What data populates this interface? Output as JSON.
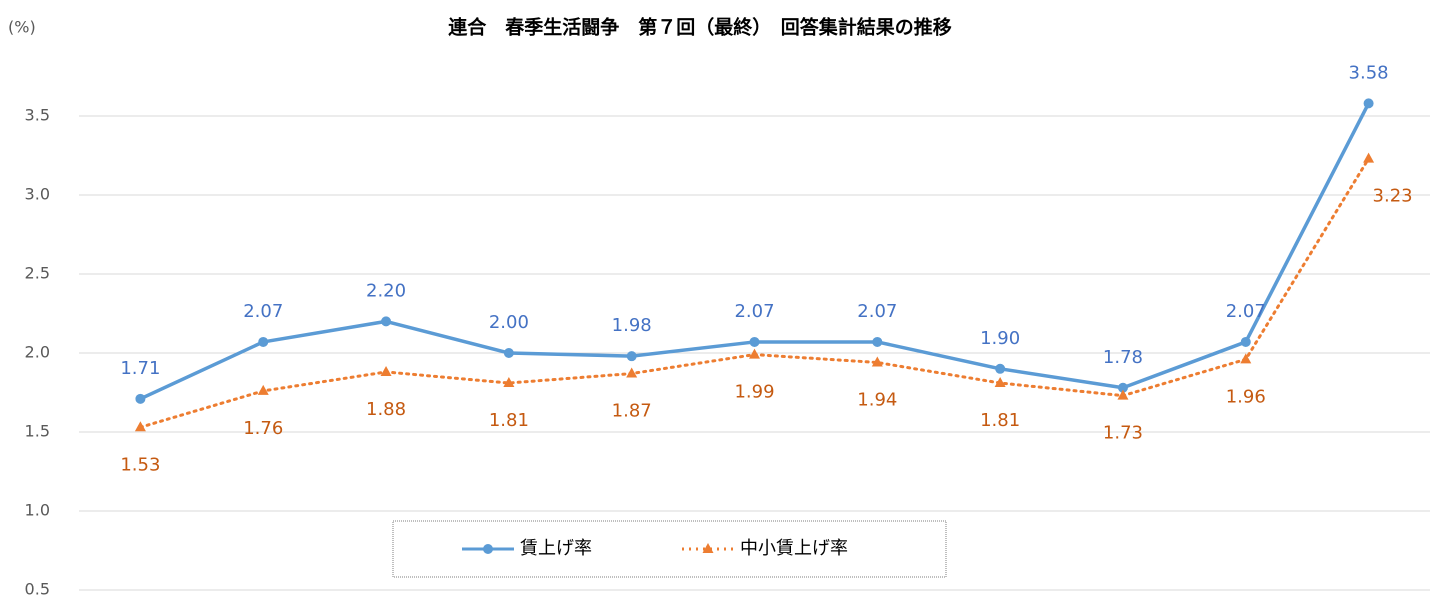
{
  "chart_data": {
    "type": "line",
    "title": "連合　春季生活闘争　第７回（最終）　回答集計結果の推移",
    "y_label": "(%)",
    "categories": [
      null,
      null,
      null,
      null,
      null,
      null,
      null,
      null,
      null,
      null,
      null
    ],
    "series": [
      {
        "name": "賃上げ率",
        "color": "#5b9bd5",
        "line_style": "solid",
        "marker": "circle",
        "values": [
          1.71,
          2.07,
          2.2,
          2.0,
          1.98,
          2.07,
          2.07,
          1.9,
          1.78,
          2.07,
          3.58
        ],
        "value_labels": [
          "1.71",
          "2.07",
          "2.20",
          "2.00",
          "1.98",
          "2.07",
          "2.07",
          "1.90",
          "1.78",
          "2.07",
          "3.58"
        ]
      },
      {
        "name": "中小賃上げ率",
        "color": "#ed7d31",
        "line_style": "dotted",
        "marker": "triangle",
        "values": [
          1.53,
          1.76,
          1.88,
          1.81,
          1.87,
          1.99,
          1.94,
          1.81,
          1.73,
          1.96,
          3.23
        ],
        "value_labels": [
          "1.53",
          "1.76",
          "1.88",
          "1.81",
          "1.87",
          "1.99",
          "1.94",
          "1.81",
          "1.73",
          "1.96",
          "3.23"
        ]
      }
    ],
    "ylim": [
      0.5,
      4.0
    ],
    "yticks": [
      0.5,
      {
        "value": 1,
        "label": "1.0"
      },
      1.5,
      {
        "value": 2,
        "label": "2.0"
      },
      2.5,
      {
        "value": 3,
        "label": "3.0"
      },
      3.5
    ],
    "grid": true,
    "legend": "bottom"
  }
}
